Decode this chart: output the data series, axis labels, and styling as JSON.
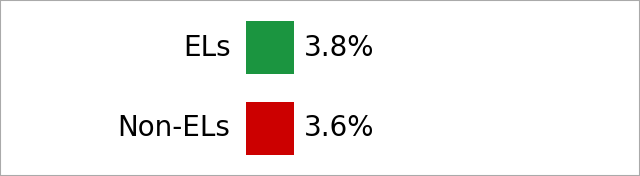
{
  "entries": [
    {
      "label": "ELs",
      "value": "3.8%",
      "color": "#1b9540"
    },
    {
      "label": "Non-ELs",
      "value": "3.6%",
      "color": "#cc0000"
    }
  ],
  "background_color": "#ffffff",
  "border_color": "#aaaaaa",
  "text_color": "#000000",
  "label_fontsize": 20,
  "value_fontsize": 20,
  "figsize": [
    6.4,
    1.76
  ],
  "dpi": 100
}
